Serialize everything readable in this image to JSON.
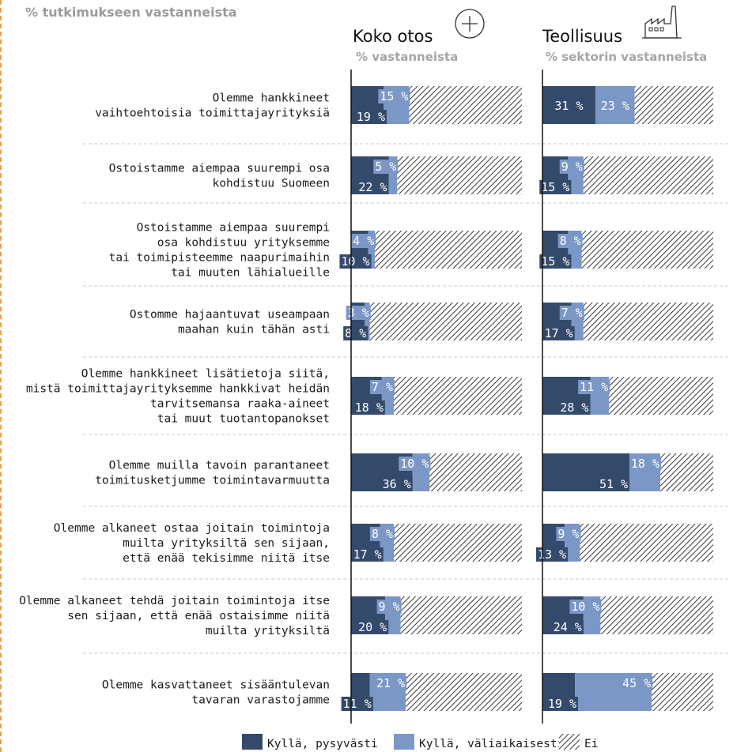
{
  "subtitle": "% tutkimukseen vastanneista",
  "panels": [
    {
      "title": "Koko otos",
      "subtitle": "% vastanneista",
      "icon": "plus-circle-icon"
    },
    {
      "title": "Teollisuus",
      "subtitle": "% sektorin vastanneista",
      "icon": "factory-icon"
    }
  ],
  "colors": {
    "permanent": "#344a6b",
    "temporary": "#7b97c6",
    "no_pattern": "#222222",
    "divider": "#c8c8c8"
  },
  "legend": [
    {
      "label": "Kyllä, pysyvästi",
      "key": "permanent"
    },
    {
      "label": "Kyllä, väliaikaisesti",
      "key": "temporary"
    },
    {
      "label": "Ei",
      "key": "no"
    }
  ],
  "chart_data": {
    "type": "bar",
    "stacked": true,
    "orientation": "horizontal",
    "xlim": [
      0,
      100
    ],
    "categories": [
      [
        "Olemme hankkineet",
        "vaihtoehtoisia toimittajayrityksiä"
      ],
      [
        "Ostoistamme aiempaa suurempi osa",
        "kohdistuu Suomeen"
      ],
      [
        "Ostoistamme aiempaa suurempi",
        "osa kohdistuu yrityksemme",
        "tai toimipisteemme naapurimaihin",
        "tai muuten lähialueille"
      ],
      [
        "Ostomme hajaantuvat useampaan",
        "maahan kuin tähän asti"
      ],
      [
        "Olemme hankkineet lisätietoja siitä,",
        "mistä toimittajayrityksemme hankkivat heidän",
        "tarvitsemansa raaka-aineet",
        "tai muut tuotantopanokset"
      ],
      [
        "Olemme muilla tavoin parantaneet",
        "toimitusketjumme toimintavarmuutta"
      ],
      [
        "Olemme alkaneet ostaa joitain toimintoja",
        "muilta yrityksiltä sen sijaan,",
        "että enää tekisimme niitä itse"
      ],
      [
        "Olemme alkaneet tehdä joitain toimintoja itse",
        "sen sijaan, että enää ostaisimme niitä",
        "muilta yrityksiltä"
      ],
      [
        "Olemme kasvattaneet sisääntulevan",
        "tavaran varastojamme"
      ]
    ],
    "panels": [
      {
        "name": "Koko otos",
        "series": [
          {
            "name": "Kyllä, pysyvästi",
            "values": [
              19,
              22,
              10,
              8,
              18,
              36,
              17,
              20,
              11
            ]
          },
          {
            "name": "Kyllä, väliaikaisesti",
            "values": [
              15,
              5,
              4,
              3,
              7,
              10,
              8,
              9,
              21
            ]
          }
        ]
      },
      {
        "name": "Teollisuus",
        "series": [
          {
            "name": "Kyllä, pysyvästi",
            "values": [
              31,
              15,
              15,
              17,
              28,
              51,
              13,
              24,
              19
            ]
          },
          {
            "name": "Kyllä, väliaikaisesti",
            "values": [
              23,
              9,
              8,
              7,
              11,
              18,
              9,
              10,
              45
            ]
          }
        ]
      }
    ],
    "value_suffix": " %"
  }
}
